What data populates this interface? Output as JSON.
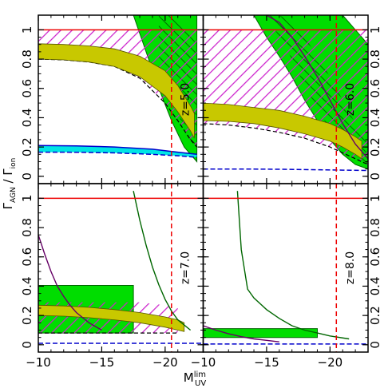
{
  "chart_data": {
    "type": "line",
    "layout": "2x2 panels, shared axes",
    "xlabel": "M",
    "xlabel_superscript": "lim",
    "xlabel_subscript": "UV",
    "ylabel_main": "Γ",
    "ylabel_sub1": "AGN",
    "ylabel_mid": " / Γ",
    "ylabel_sub2": "ion",
    "xlim": [
      -10,
      -23
    ],
    "ylim": [
      -0.05,
      1.1
    ],
    "x_ticks": [
      -10,
      -15,
      -20
    ],
    "x_tick_labels": [
      "−10",
      "−15",
      "−20"
    ],
    "y_ticks": [
      0,
      0.2,
      0.4,
      0.6,
      0.8,
      1
    ],
    "y_tick_labels": [
      "0",
      "0.2",
      "0.4",
      "0.6",
      "0.8",
      "1"
    ],
    "grid": false,
    "colors": {
      "magenta_hatch": "#cc22cc",
      "green_band": "#00dd00",
      "green_hatch": "#006600",
      "yellow_band": "#c8c800",
      "cyan_band": "#00e5e5",
      "blue_line": "#0000cc",
      "purple_line": "#660066",
      "dark_green_line": "#006600",
      "red_line": "#ee0000"
    },
    "panels": [
      {
        "label": "z=5.0",
        "position": "top-left",
        "reference_line_y": 1,
        "vertical_dashed_x": -20.5,
        "magenta_hatched": {
          "x": [
            -10,
            -12,
            -14,
            -16,
            -18,
            -20,
            -21,
            -22,
            -22.5
          ],
          "upper": [
            1,
            1,
            1,
            1,
            1,
            1,
            1,
            1,
            1
          ],
          "lower": [
            0.8,
            0.795,
            0.78,
            0.75,
            0.67,
            0.5,
            0.38,
            0.25,
            0.2
          ]
        },
        "yellow_band": {
          "x": [
            -10,
            -12,
            -14,
            -16,
            -18,
            -20,
            -21,
            -22,
            -22.3
          ],
          "upper": [
            0.905,
            0.9,
            0.89,
            0.87,
            0.82,
            0.72,
            0.62,
            0.48,
            0.43
          ],
          "lower": [
            0.8,
            0.795,
            0.78,
            0.75,
            0.68,
            0.55,
            0.44,
            0.31,
            0.26
          ]
        },
        "green_band": {
          "x": [
            -17.5,
            -18.5,
            -19.5,
            -20.5,
            -21.5,
            -22.5
          ],
          "upper": [
            1.1,
            1.1,
            1.1,
            1.1,
            1.1,
            1.1
          ],
          "lower": [
            1.1,
            0.85,
            0.6,
            0.38,
            0.2,
            0.1
          ]
        },
        "green_hatched": {
          "x": [
            -19.5,
            -20.5,
            -21.5,
            -22.5
          ],
          "upper": [
            1.1,
            1.1,
            1.02,
            0.9
          ],
          "lower": [
            0.75,
            0.55,
            0.32,
            0.15
          ]
        },
        "cyan_band": {
          "x": [
            -10,
            -13,
            -16,
            -19,
            -21,
            -22.5
          ],
          "upper": [
            0.21,
            0.208,
            0.2,
            0.185,
            0.165,
            0.15
          ],
          "lower": [
            0.165,
            0.164,
            0.16,
            0.15,
            0.14,
            0.13
          ]
        },
        "blue_line": {
          "x": [
            -10,
            -13,
            -16,
            -19,
            -21,
            -22.5
          ],
          "y": [
            0.165,
            0.164,
            0.16,
            0.15,
            0.14,
            0.13
          ]
        }
      },
      {
        "label": "z=6.0",
        "position": "top-right",
        "reference_line_y": 1,
        "vertical_dashed_x": -20.5,
        "magenta_hatched": {
          "x": [
            -10,
            -12,
            -14,
            -16,
            -18,
            -20,
            -21,
            -22,
            -23
          ],
          "upper": [
            1,
            1,
            1,
            1,
            1,
            1,
            1,
            1,
            1
          ],
          "lower": [
            0.36,
            0.35,
            0.33,
            0.3,
            0.26,
            0.2,
            0.16,
            0.12,
            0.08
          ]
        },
        "yellow_band": {
          "x": [
            -10,
            -12,
            -14,
            -16,
            -18,
            -20,
            -21,
            -22,
            -22.5
          ],
          "upper": [
            0.5,
            0.49,
            0.47,
            0.45,
            0.41,
            0.36,
            0.32,
            0.27,
            0.24
          ],
          "lower": [
            0.38,
            0.375,
            0.36,
            0.33,
            0.29,
            0.24,
            0.2,
            0.15,
            0.12
          ]
        },
        "green_band": {
          "x": [
            -14,
            -15,
            -16,
            -17,
            -18,
            -19,
            -20,
            -21,
            -22,
            -23
          ],
          "upper": [
            1.1,
            1.1,
            1.1,
            1.1,
            1.1,
            1.1,
            1.1,
            1.1,
            1.0,
            0.9
          ],
          "lower": [
            1.1,
            0.95,
            0.82,
            0.68,
            0.52,
            0.38,
            0.25,
            0.15,
            0.08,
            0.05
          ]
        },
        "green_hatched": {
          "x": [
            -15,
            -16,
            -17,
            -18,
            -19,
            -20,
            -21,
            -22,
            -23
          ],
          "upper": [
            1.1,
            1.1,
            1.05,
            0.95,
            0.82,
            0.68,
            0.52,
            0.36,
            0.22
          ],
          "lower": [
            1.1,
            0.95,
            0.8,
            0.62,
            0.46,
            0.32,
            0.2,
            0.12,
            0.06
          ]
        },
        "purple_line": {
          "x": [
            -15,
            -16,
            -17,
            -18,
            -19,
            -20,
            -21,
            -22,
            -23
          ],
          "y": [
            1.1,
            1.05,
            0.95,
            0.82,
            0.68,
            0.52,
            0.36,
            0.22,
            0.12
          ]
        },
        "blue_line": {
          "x": [
            -10,
            -13,
            -16,
            -19,
            -21,
            -23
          ],
          "y": [
            0.05,
            0.05,
            0.048,
            0.045,
            0.042,
            0.04
          ]
        }
      },
      {
        "label": "z=7.0",
        "position": "bottom-left",
        "reference_line_y": 1,
        "vertical_dashed_x": -20.5,
        "purple_line": {
          "x": [
            -10,
            -10.5,
            -11,
            -11.5,
            -12,
            -12.5,
            -13,
            -14,
            -15
          ],
          "y": [
            0.75,
            0.62,
            0.5,
            0.4,
            0.33,
            0.27,
            0.22,
            0.15,
            0.1
          ]
        },
        "green_band": {
          "x": [
            -10,
            -11,
            -12,
            -13,
            -14,
            -15,
            -16,
            -17,
            -17.5
          ],
          "upper": [
            0.405,
            0.405,
            0.405,
            0.405,
            0.405,
            0.405,
            0.405,
            0.405,
            0.405
          ],
          "lower": [
            0.08,
            0.08,
            0.08,
            0.08,
            0.08,
            0.08,
            0.08,
            0.08,
            0.08
          ]
        },
        "magenta_hatched": {
          "x": [
            -10,
            -12,
            -14,
            -16,
            -18,
            -20,
            -21
          ],
          "upper": [
            0.29,
            0.29,
            0.29,
            0.29,
            0.29,
            0.27,
            0.25
          ],
          "lower": [
            0.08,
            0.08,
            0.08,
            0.08,
            0.08,
            0.08,
            0.08
          ]
        },
        "yellow_band": {
          "x": [
            -10,
            -12,
            -14,
            -16,
            -18,
            -20,
            -21,
            -21.5
          ],
          "upper": [
            0.27,
            0.265,
            0.255,
            0.24,
            0.22,
            0.19,
            0.17,
            0.15
          ],
          "lower": [
            0.2,
            0.195,
            0.185,
            0.17,
            0.15,
            0.12,
            0.1,
            0.09
          ]
        },
        "dark_green_line": {
          "x": [
            -17.5,
            -18,
            -18.5,
            -19,
            -19.5,
            -20,
            -20.5,
            -21,
            -22
          ],
          "y": [
            1.05,
            0.85,
            0.68,
            0.53,
            0.41,
            0.31,
            0.23,
            0.17,
            0.1
          ]
        },
        "blue_line": {
          "x": [
            -10,
            -13,
            -16,
            -19,
            -21,
            -23
          ],
          "y": [
            0.01,
            0.01,
            0.01,
            0.01,
            0.01,
            0.01
          ]
        }
      },
      {
        "label": "z=8.0",
        "position": "bottom-right",
        "reference_line_y": 1,
        "vertical_dashed_x": -20.5,
        "purple_line": {
          "x": [
            -10,
            -11,
            -12,
            -13,
            -14,
            -15,
            -16
          ],
          "y": [
            0.13,
            0.1,
            0.075,
            0.055,
            0.04,
            0.03,
            0.02
          ]
        },
        "green_band": {
          "x": [
            -10,
            -12,
            -14,
            -16,
            -18,
            -19
          ],
          "upper": [
            0.11,
            0.11,
            0.11,
            0.11,
            0.11,
            0.11
          ],
          "lower": [
            0.05,
            0.05,
            0.05,
            0.05,
            0.05,
            0.05
          ]
        },
        "dark_green_line": {
          "x": [
            -12.7,
            -13,
            -13.5,
            -14,
            -15,
            -16,
            -17,
            -18,
            -19,
            -20,
            -21.5
          ],
          "y": [
            1.05,
            0.65,
            0.38,
            0.32,
            0.24,
            0.18,
            0.13,
            0.1,
            0.08,
            0.06,
            0.04
          ]
        },
        "blue_line": {
          "x": [
            -10,
            -13,
            -16,
            -19,
            -21,
            -23
          ],
          "y": [
            0.005,
            0.005,
            0.005,
            0.005,
            0.005,
            0.005
          ]
        }
      }
    ]
  }
}
